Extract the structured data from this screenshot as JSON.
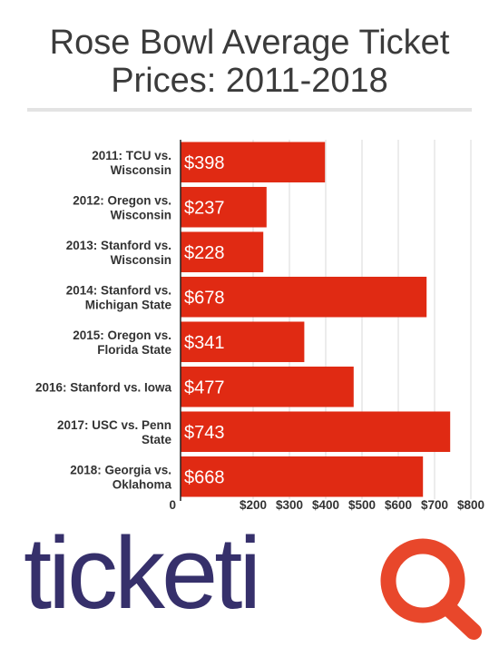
{
  "title": "Rose Bowl Average Ticket Prices: 2011-2018",
  "logo": {
    "text": "ticketiQ",
    "brand_color": "#36306b",
    "accent_color": "#e8472b"
  },
  "chart_data": {
    "type": "bar",
    "orientation": "horizontal",
    "categories": [
      [
        "2011: TCU vs.",
        "Wisconsin"
      ],
      [
        "2012: Oregon vs.",
        "Wisconsin"
      ],
      [
        "2013: Stanford vs.",
        "Wisconsin"
      ],
      [
        "2014: Stanford vs.",
        "Michigan State"
      ],
      [
        "2015: Oregon vs.",
        "Florida State"
      ],
      [
        "2016: Stanford vs. Iowa"
      ],
      [
        "2017: USC vs. Penn",
        "State"
      ],
      [
        "2018: Georgia vs.",
        "Oklahoma"
      ]
    ],
    "values": [
      398,
      237,
      228,
      678,
      341,
      477,
      743,
      668
    ],
    "data_labels": [
      "$398",
      "$237",
      "$228",
      "$678",
      "$341",
      "$477",
      "$743",
      "$668"
    ],
    "xlim": [
      0,
      800
    ],
    "xticks": [
      0,
      200,
      300,
      400,
      500,
      600,
      700,
      800
    ],
    "xtick_labels": [
      "0",
      "$200",
      "$300",
      "$400",
      "$500",
      "$600",
      "$700",
      "$800"
    ],
    "grid": true,
    "bar_color": "#e02a13"
  }
}
